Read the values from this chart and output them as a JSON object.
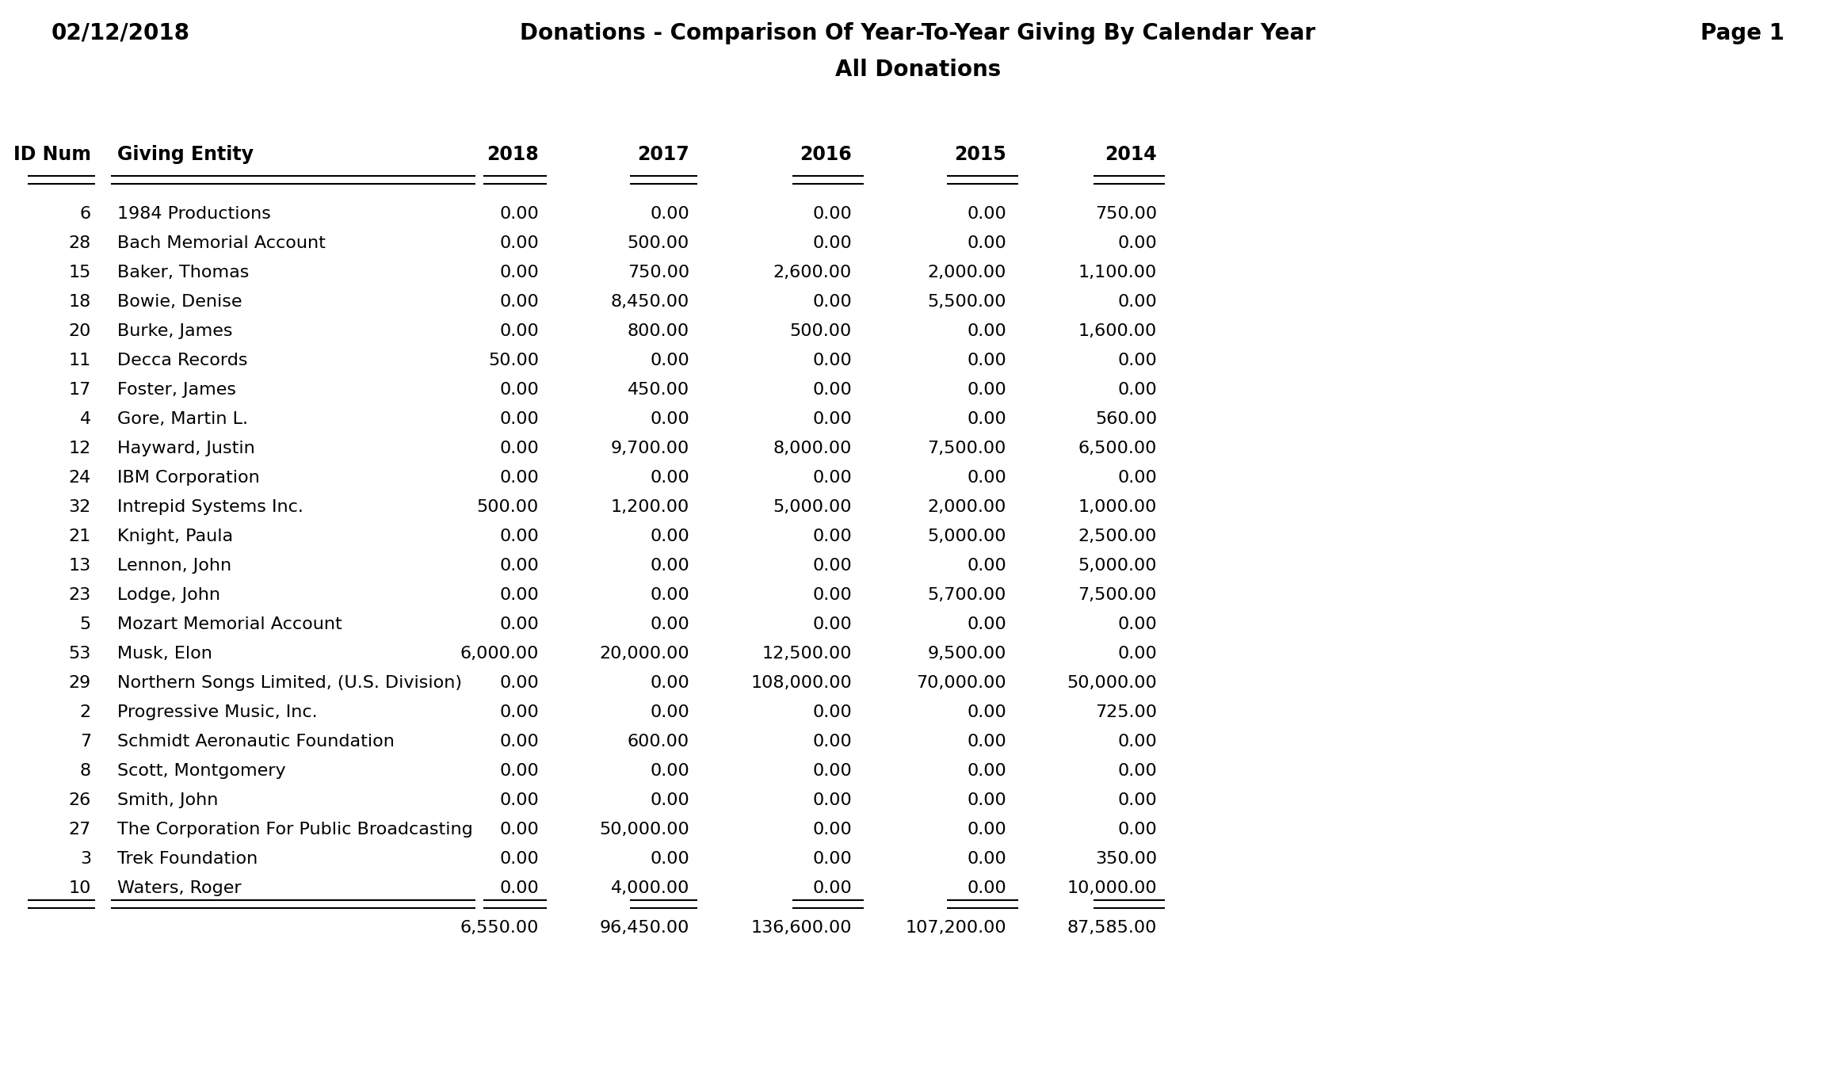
{
  "date": "02/12/2018",
  "title": "Donations - Comparison Of Year-To-Year Giving By Calendar Year",
  "subtitle": "All Donations",
  "page": "Page 1",
  "col_headers": [
    "ID Num",
    "Giving Entity",
    "2018",
    "2017",
    "2016",
    "2015",
    "2014"
  ],
  "rows": [
    [
      6,
      "1984 Productions",
      "0.00",
      "0.00",
      "0.00",
      "0.00",
      "750.00"
    ],
    [
      28,
      "Bach Memorial Account",
      "0.00",
      "500.00",
      "0.00",
      "0.00",
      "0.00"
    ],
    [
      15,
      "Baker, Thomas",
      "0.00",
      "750.00",
      "2,600.00",
      "2,000.00",
      "1,100.00"
    ],
    [
      18,
      "Bowie, Denise",
      "0.00",
      "8,450.00",
      "0.00",
      "5,500.00",
      "0.00"
    ],
    [
      20,
      "Burke, James",
      "0.00",
      "800.00",
      "500.00",
      "0.00",
      "1,600.00"
    ],
    [
      11,
      "Decca Records",
      "50.00",
      "0.00",
      "0.00",
      "0.00",
      "0.00"
    ],
    [
      17,
      "Foster, James",
      "0.00",
      "450.00",
      "0.00",
      "0.00",
      "0.00"
    ],
    [
      4,
      "Gore, Martin L.",
      "0.00",
      "0.00",
      "0.00",
      "0.00",
      "560.00"
    ],
    [
      12,
      "Hayward, Justin",
      "0.00",
      "9,700.00",
      "8,000.00",
      "7,500.00",
      "6,500.00"
    ],
    [
      24,
      "IBM Corporation",
      "0.00",
      "0.00",
      "0.00",
      "0.00",
      "0.00"
    ],
    [
      32,
      "Intrepid Systems Inc.",
      "500.00",
      "1,200.00",
      "5,000.00",
      "2,000.00",
      "1,000.00"
    ],
    [
      21,
      "Knight, Paula",
      "0.00",
      "0.00",
      "0.00",
      "5,000.00",
      "2,500.00"
    ],
    [
      13,
      "Lennon, John",
      "0.00",
      "0.00",
      "0.00",
      "0.00",
      "5,000.00"
    ],
    [
      23,
      "Lodge, John",
      "0.00",
      "0.00",
      "0.00",
      "5,700.00",
      "7,500.00"
    ],
    [
      5,
      "Mozart Memorial Account",
      "0.00",
      "0.00",
      "0.00",
      "0.00",
      "0.00"
    ],
    [
      53,
      "Musk, Elon",
      "6,000.00",
      "20,000.00",
      "12,500.00",
      "9,500.00",
      "0.00"
    ],
    [
      29,
      "Northern Songs Limited, (U.S. Division)",
      "0.00",
      "0.00",
      "108,000.00",
      "70,000.00",
      "50,000.00"
    ],
    [
      2,
      "Progressive Music, Inc.",
      "0.00",
      "0.00",
      "0.00",
      "0.00",
      "725.00"
    ],
    [
      7,
      "Schmidt Aeronautic Foundation",
      "0.00",
      "600.00",
      "0.00",
      "0.00",
      "0.00"
    ],
    [
      8,
      "Scott, Montgomery",
      "0.00",
      "0.00",
      "0.00",
      "0.00",
      "0.00"
    ],
    [
      26,
      "Smith, John",
      "0.00",
      "0.00",
      "0.00",
      "0.00",
      "0.00"
    ],
    [
      27,
      "The Corporation For Public Broadcasting",
      "0.00",
      "50,000.00",
      "0.00",
      "0.00",
      "0.00"
    ],
    [
      3,
      "Trek Foundation",
      "0.00",
      "0.00",
      "0.00",
      "0.00",
      "350.00"
    ],
    [
      10,
      "Waters, Roger",
      "0.00",
      "4,000.00",
      "0.00",
      "0.00",
      "10,000.00"
    ]
  ],
  "totals": [
    "6,550.00",
    "96,450.00",
    "136,600.00",
    "107,200.00",
    "87,585.00"
  ],
  "bg_color": "#ffffff",
  "text_color": "#000000",
  "title_fontsize": 20,
  "header_fontsize": 17,
  "data_fontsize": 16,
  "figsize": [
    23.17,
    13.63
  ],
  "dpi": 100
}
